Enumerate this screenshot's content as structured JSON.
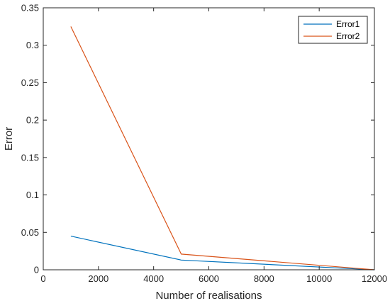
{
  "chart_data": {
    "type": "line",
    "xlabel": "Number of realisations",
    "ylabel": "Error",
    "xlim": [
      0,
      12000
    ],
    "ylim": [
      0,
      0.35
    ],
    "xticks": [
      0,
      2000,
      4000,
      6000,
      8000,
      10000,
      12000
    ],
    "xtick_labels": [
      "0",
      "2000",
      "4000",
      "6000",
      "8000",
      "10000",
      "12000"
    ],
    "yticks": [
      0,
      0.05,
      0.1,
      0.15,
      0.2,
      0.25,
      0.3,
      0.35
    ],
    "ytick_labels": [
      "0",
      "0.05",
      "0.1",
      "0.15",
      "0.2",
      "0.25",
      "0.3",
      "0.35"
    ],
    "grid": false,
    "legend_position": "top-right",
    "series": [
      {
        "name": "Error1",
        "color": "#0072BD",
        "x": [
          1000,
          5000,
          12000
        ],
        "y": [
          0.045,
          0.013,
          0.0
        ]
      },
      {
        "name": "Error2",
        "color": "#D95319",
        "x": [
          1000,
          5000,
          12000
        ],
        "y": [
          0.325,
          0.021,
          0.0
        ]
      }
    ]
  }
}
